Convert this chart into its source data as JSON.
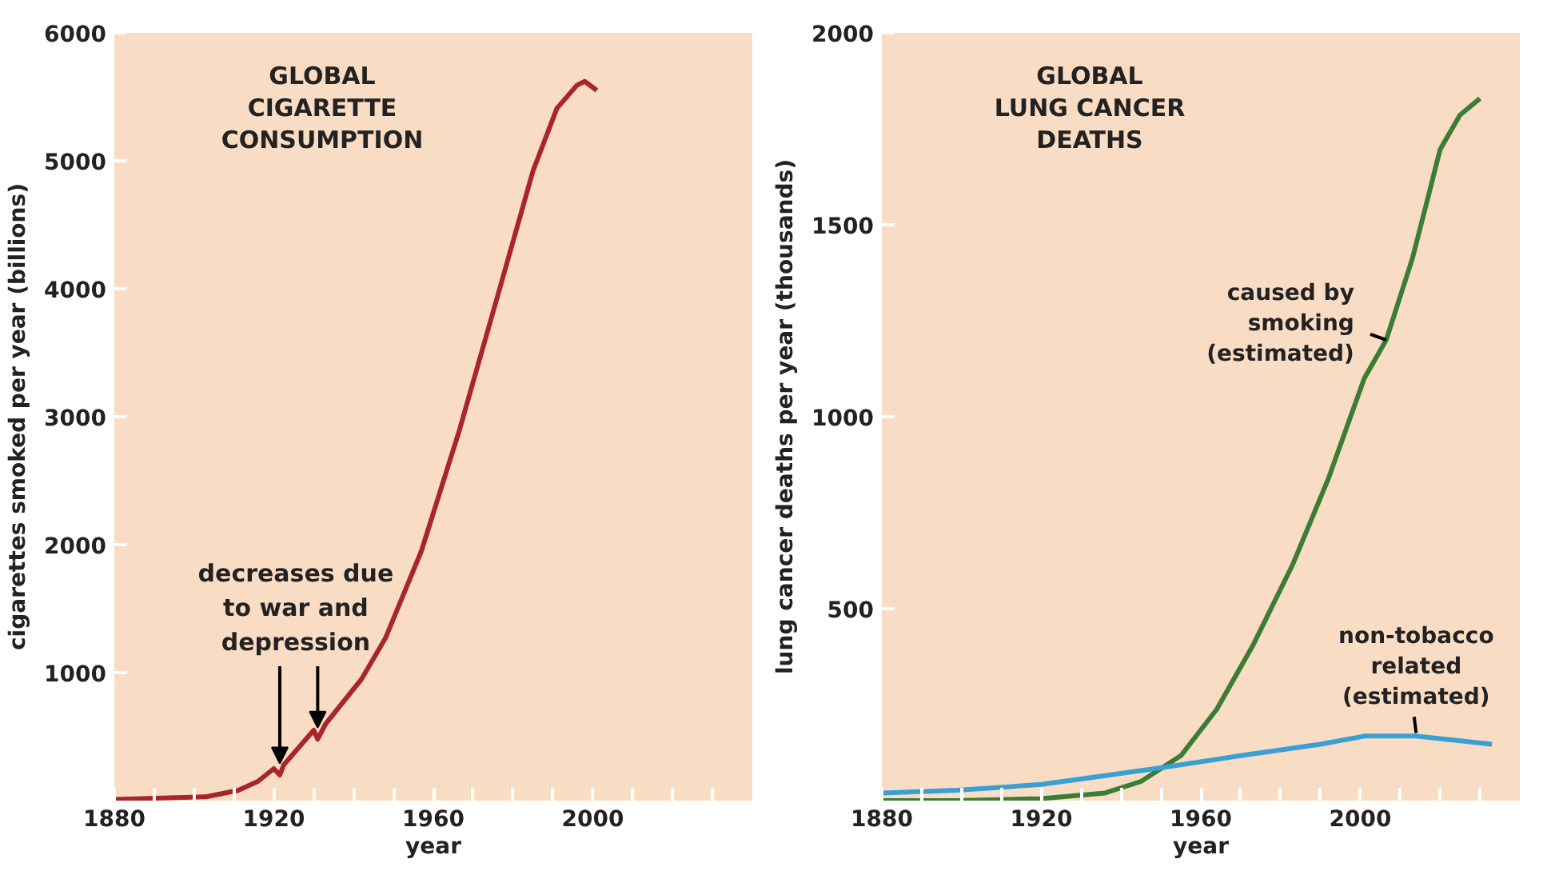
{
  "chart_data": [
    {
      "type": "line",
      "title": "GLOBAL\nCIGARETTE\nCONSUMPTION",
      "xlabel": "year",
      "ylabel": "cigarettes smoked per year (billions)",
      "xlim": [
        1880,
        2040
      ],
      "ylim": [
        0,
        6000
      ],
      "xticks": [
        1880,
        {
          "value": 1890,
          "label": null
        },
        {
          "value": 1900,
          "label": null
        },
        {
          "value": 1910,
          "label": null
        },
        1920,
        {
          "value": 1930,
          "label": null
        },
        {
          "value": 1940,
          "label": null
        },
        {
          "value": 1950,
          "label": null
        },
        1960,
        {
          "value": 1970,
          "label": null
        },
        {
          "value": 1980,
          "label": null
        },
        {
          "value": 1990,
          "label": null
        },
        2000,
        {
          "value": 2010,
          "label": null
        },
        {
          "value": 2020,
          "label": null
        },
        {
          "value": 2030,
          "label": null
        }
      ],
      "yticks": [
        1000,
        2000,
        3000,
        4000,
        5000,
        6000
      ],
      "grid": false,
      "annotations": [
        {
          "text": "decreases due\nto war and\ndepression",
          "x": 1921.5,
          "y": 210
        }
      ],
      "series": [
        {
          "color": "#a8262b",
          "x": [
            1880,
            1903,
            1911,
            1916,
            1920,
            1921.5,
            1922.5,
            1930,
            1931,
            1933,
            1942,
            1948,
            1957,
            1966.5,
            1976,
            1985,
            1991,
            1996,
            1998,
            2001
          ],
          "values": [
            10,
            30,
            80,
            150,
            250,
            200,
            280,
            550,
            480,
            600,
            950,
            1270,
            1950,
            2890,
            3930,
            4920,
            5410,
            5590,
            5620,
            5550
          ]
        }
      ]
    },
    {
      "type": "line",
      "title": "GLOBAL\nLUNG CANCER\nDEATHS",
      "xlabel": "year",
      "ylabel": "lung cancer deaths per year (thousands)",
      "xlim": [
        1880,
        2040
      ],
      "ylim": [
        0,
        2000
      ],
      "xticks": [
        1880,
        {
          "value": 1890,
          "label": null
        },
        {
          "value": 1900,
          "label": null
        },
        {
          "value": 1910,
          "label": null
        },
        1920,
        {
          "value": 1930,
          "label": null
        },
        {
          "value": 1940,
          "label": null
        },
        {
          "value": 1950,
          "label": null
        },
        1960,
        {
          "value": 1970,
          "label": null
        },
        {
          "value": 1980,
          "label": null
        },
        {
          "value": 1990,
          "label": null
        },
        2000,
        {
          "value": 2010,
          "label": null
        },
        {
          "value": 2020,
          "label": null
        },
        {
          "value": 2030,
          "label": null
        }
      ],
      "yticks": [
        500,
        1000,
        1500,
        2000
      ],
      "grid": false,
      "series": [
        {
          "name": "caused by\nsmoking\n(estimated)",
          "color": "#3c7d34",
          "x": [
            1880,
            1899,
            1920,
            1936,
            1945,
            1955,
            1964,
            1973,
            1983,
            1992,
            2001,
            2006.5,
            2013,
            2017,
            2020,
            2025,
            2030
          ],
          "values": [
            0,
            0,
            5,
            20,
            50,
            117,
            238,
            403,
            614,
            839,
            1100,
            1200,
            1410,
            1572,
            1696,
            1786,
            1829
          ]
        },
        {
          "name": "non-tobacco\nrelated\n(estimated)",
          "color": "#3a9fd3",
          "x": [
            1880,
            1899,
            1920,
            1936,
            1951,
            1970,
            1990,
            2001,
            2014,
            2033
          ],
          "values": [
            20,
            27,
            42,
            65,
            87,
            117,
            147,
            168,
            168,
            147
          ]
        }
      ]
    }
  ]
}
